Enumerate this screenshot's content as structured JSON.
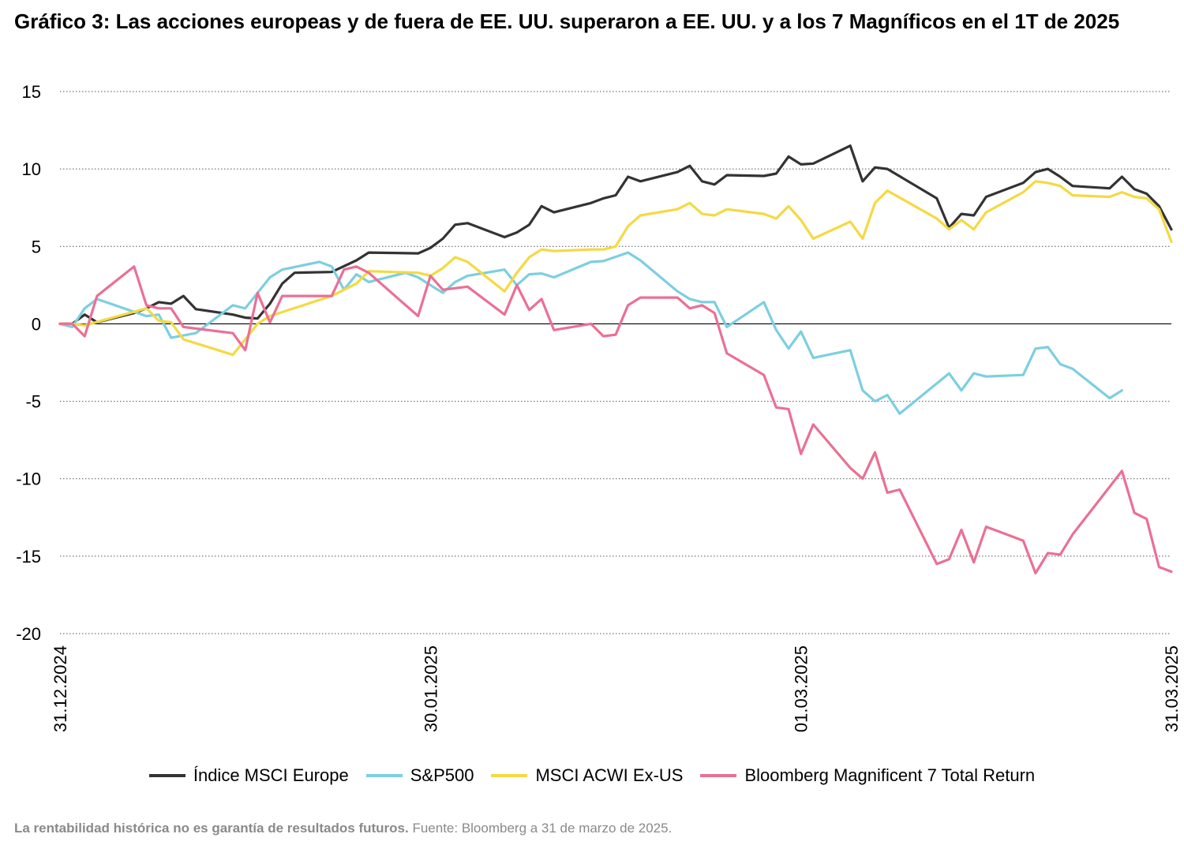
{
  "title": "Gráfico 3: Las acciones europeas y de fuera de EE. UU. superaron a EE. UU. y a los 7 Magníficos en el 1T de 2025",
  "footnote": {
    "bold": "La rentabilidad histórica no es garantía de resultados futuros.",
    "normal": " Fuente: Bloomberg a 31 de marzo de 2025."
  },
  "chart_data": {
    "type": "line",
    "xlabel": "",
    "ylabel": "",
    "ylim": [
      -20,
      15
    ],
    "yticks": [
      15,
      10,
      5,
      0,
      -5,
      -10,
      -15,
      -20
    ],
    "xlim": [
      "2024-12-31",
      "2025-03-31"
    ],
    "xticks": [
      "31.12.2024",
      "30.01.2025",
      "01.03.2025",
      "31.03.2025"
    ],
    "grid": "horizontal dotted",
    "legend_position": "bottom",
    "series": [
      {
        "name": "Índice MSCI Europe",
        "color": "#333333",
        "points": [
          [
            "2024-12-31",
            0
          ],
          [
            "2025-01-01",
            0
          ],
          [
            "2025-01-02",
            0.6
          ],
          [
            "2025-01-03",
            0.1
          ],
          [
            "2025-01-06",
            0.7
          ],
          [
            "2025-01-07",
            1.0
          ],
          [
            "2025-01-08",
            1.4
          ],
          [
            "2025-01-09",
            1.3
          ],
          [
            "2025-01-10",
            1.8
          ],
          [
            "2025-01-11",
            0.95
          ],
          [
            "2025-01-14",
            0.6
          ],
          [
            "2025-01-15",
            0.4
          ],
          [
            "2025-01-16",
            0.35
          ],
          [
            "2025-01-17",
            1.3
          ],
          [
            "2025-01-18",
            2.6
          ],
          [
            "2025-01-19",
            3.3
          ],
          [
            "2025-01-22",
            3.35
          ],
          [
            "2025-01-24",
            4.1
          ],
          [
            "2025-01-25",
            4.6
          ],
          [
            "2025-01-29",
            4.55
          ],
          [
            "2025-01-30",
            4.9
          ],
          [
            "2025-01-31",
            5.5
          ],
          [
            "2025-02-01",
            6.4
          ],
          [
            "2025-02-02",
            6.5
          ],
          [
            "2025-02-05",
            5.6
          ],
          [
            "2025-02-06",
            5.9
          ],
          [
            "2025-02-07",
            6.4
          ],
          [
            "2025-02-08",
            7.6
          ],
          [
            "2025-02-09",
            7.2
          ],
          [
            "2025-02-12",
            7.8
          ],
          [
            "2025-02-13",
            8.1
          ],
          [
            "2025-02-14",
            8.3
          ],
          [
            "2025-02-15",
            9.5
          ],
          [
            "2025-02-16",
            9.2
          ],
          [
            "2025-02-19",
            9.8
          ],
          [
            "2025-02-20",
            10.2
          ],
          [
            "2025-02-21",
            9.2
          ],
          [
            "2025-02-22",
            9.0
          ],
          [
            "2025-02-23",
            9.6
          ],
          [
            "2025-02-26",
            9.55
          ],
          [
            "2025-02-27",
            9.7
          ],
          [
            "2025-02-28",
            10.8
          ],
          [
            "2025-03-01",
            10.3
          ],
          [
            "2025-03-02",
            10.35
          ],
          [
            "2025-03-05",
            11.5
          ],
          [
            "2025-03-06",
            9.2
          ],
          [
            "2025-03-07",
            10.1
          ],
          [
            "2025-03-08",
            10.0
          ],
          [
            "2025-03-12",
            8.1
          ],
          [
            "2025-03-13",
            6.2
          ],
          [
            "2025-03-14",
            7.1
          ],
          [
            "2025-03-15",
            7.0
          ],
          [
            "2025-03-16",
            8.2
          ],
          [
            "2025-03-19",
            9.1
          ],
          [
            "2025-03-20",
            9.8
          ],
          [
            "2025-03-21",
            10.0
          ],
          [
            "2025-03-22",
            9.5
          ],
          [
            "2025-03-23",
            8.9
          ],
          [
            "2025-03-26",
            8.75
          ],
          [
            "2025-03-27",
            9.5
          ],
          [
            "2025-03-28",
            8.7
          ],
          [
            "2025-03-29",
            8.4
          ],
          [
            "2025-03-30",
            7.6
          ],
          [
            "2025-03-31",
            6.1
          ]
        ]
      },
      {
        "name": "S&P500",
        "color": "#7ccfe0",
        "points": [
          [
            "2024-12-31",
            0
          ],
          [
            "2025-01-01",
            -0.2
          ],
          [
            "2025-01-02",
            1.0
          ],
          [
            "2025-01-03",
            1.6
          ],
          [
            "2025-01-07",
            0.5
          ],
          [
            "2025-01-08",
            0.6
          ],
          [
            "2025-01-09",
            -0.9
          ],
          [
            "2025-01-11",
            -0.6
          ],
          [
            "2025-01-14",
            1.2
          ],
          [
            "2025-01-15",
            1.0
          ],
          [
            "2025-01-16",
            2.0
          ],
          [
            "2025-01-17",
            3.0
          ],
          [
            "2025-01-18",
            3.5
          ],
          [
            "2025-01-21",
            4.0
          ],
          [
            "2025-01-22",
            3.7
          ],
          [
            "2025-01-23",
            2.2
          ],
          [
            "2025-01-24",
            3.2
          ],
          [
            "2025-01-25",
            2.7
          ],
          [
            "2025-01-28",
            3.3
          ],
          [
            "2025-01-29",
            3.0
          ],
          [
            "2025-01-31",
            2.0
          ],
          [
            "2025-02-01",
            2.7
          ],
          [
            "2025-02-02",
            3.1
          ],
          [
            "2025-02-05",
            3.5
          ],
          [
            "2025-02-06",
            2.5
          ],
          [
            "2025-02-07",
            3.2
          ],
          [
            "2025-02-08",
            3.25
          ],
          [
            "2025-02-09",
            3.0
          ],
          [
            "2025-02-12",
            4.0
          ],
          [
            "2025-02-13",
            4.05
          ],
          [
            "2025-02-15",
            4.6
          ],
          [
            "2025-02-16",
            4.1
          ],
          [
            "2025-02-19",
            2.1
          ],
          [
            "2025-02-20",
            1.6
          ],
          [
            "2025-02-21",
            1.4
          ],
          [
            "2025-02-22",
            1.4
          ],
          [
            "2025-02-23",
            -0.2
          ],
          [
            "2025-02-26",
            1.4
          ],
          [
            "2025-02-27",
            -0.4
          ],
          [
            "2025-02-28",
            -1.6
          ],
          [
            "2025-03-01",
            -0.5
          ],
          [
            "2025-03-02",
            -2.2
          ],
          [
            "2025-03-05",
            -1.7
          ],
          [
            "2025-03-06",
            -4.3
          ],
          [
            "2025-03-07",
            -5.0
          ],
          [
            "2025-03-08",
            -4.6
          ],
          [
            "2025-03-09",
            -5.8
          ],
          [
            "2025-03-13",
            -3.2
          ],
          [
            "2025-03-14",
            -4.3
          ],
          [
            "2025-03-15",
            -3.2
          ],
          [
            "2025-03-16",
            -3.4
          ],
          [
            "2025-03-19",
            -3.3
          ],
          [
            "2025-03-20",
            -1.6
          ],
          [
            "2025-03-21",
            -1.5
          ],
          [
            "2025-03-22",
            -2.6
          ],
          [
            "2025-03-23",
            -2.9
          ],
          [
            "2025-03-26",
            -4.8
          ],
          [
            "2025-03-27",
            -4.3
          ]
        ]
      },
      {
        "name": "MSCI ACWI Ex-US",
        "color": "#f5d942",
        "points": [
          [
            "2024-12-31",
            0
          ],
          [
            "2025-01-01",
            0
          ],
          [
            "2025-01-02",
            -0.1
          ],
          [
            "2025-01-07",
            1.0
          ],
          [
            "2025-01-08",
            0.2
          ],
          [
            "2025-01-09",
            0.1
          ],
          [
            "2025-01-10",
            -1.0
          ],
          [
            "2025-01-14",
            -2.0
          ],
          [
            "2025-01-15",
            -1.0
          ],
          [
            "2025-01-16",
            0.0
          ],
          [
            "2025-01-17",
            0.5
          ],
          [
            "2025-01-22",
            1.8
          ],
          [
            "2025-01-24",
            2.6
          ],
          [
            "2025-01-25",
            3.4
          ],
          [
            "2025-01-29",
            3.3
          ],
          [
            "2025-01-30",
            3.1
          ],
          [
            "2025-01-31",
            3.6
          ],
          [
            "2025-02-01",
            4.3
          ],
          [
            "2025-02-02",
            4.0
          ],
          [
            "2025-02-05",
            2.1
          ],
          [
            "2025-02-06",
            3.3
          ],
          [
            "2025-02-07",
            4.3
          ],
          [
            "2025-02-08",
            4.8
          ],
          [
            "2025-02-09",
            4.7
          ],
          [
            "2025-02-12",
            4.8
          ],
          [
            "2025-02-13",
            4.8
          ],
          [
            "2025-02-14",
            5.0
          ],
          [
            "2025-02-15",
            6.3
          ],
          [
            "2025-02-16",
            7.0
          ],
          [
            "2025-02-19",
            7.4
          ],
          [
            "2025-02-20",
            7.8
          ],
          [
            "2025-02-21",
            7.1
          ],
          [
            "2025-02-22",
            7.0
          ],
          [
            "2025-02-23",
            7.4
          ],
          [
            "2025-02-26",
            7.1
          ],
          [
            "2025-02-27",
            6.8
          ],
          [
            "2025-02-28",
            7.6
          ],
          [
            "2025-03-01",
            6.7
          ],
          [
            "2025-03-02",
            5.5
          ],
          [
            "2025-03-05",
            6.6
          ],
          [
            "2025-03-06",
            5.5
          ],
          [
            "2025-03-07",
            7.8
          ],
          [
            "2025-03-08",
            8.6
          ],
          [
            "2025-03-12",
            6.8
          ],
          [
            "2025-03-13",
            6.1
          ],
          [
            "2025-03-14",
            6.7
          ],
          [
            "2025-03-15",
            6.1
          ],
          [
            "2025-03-16",
            7.2
          ],
          [
            "2025-03-19",
            8.5
          ],
          [
            "2025-03-20",
            9.2
          ],
          [
            "2025-03-21",
            9.1
          ],
          [
            "2025-03-22",
            8.9
          ],
          [
            "2025-03-23",
            8.3
          ],
          [
            "2025-03-26",
            8.2
          ],
          [
            "2025-03-27",
            8.5
          ],
          [
            "2025-03-28",
            8.2
          ],
          [
            "2025-03-29",
            8.1
          ],
          [
            "2025-03-30",
            7.4
          ],
          [
            "2025-03-31",
            5.3
          ]
        ]
      },
      {
        "name": "Bloomberg Magnificent 7 Total Return",
        "color": "#ea7095",
        "points": [
          [
            "2024-12-31",
            0
          ],
          [
            "2025-01-01",
            0
          ],
          [
            "2025-01-02",
            -0.8
          ],
          [
            "2025-01-03",
            1.8
          ],
          [
            "2025-01-06",
            3.7
          ],
          [
            "2025-01-07",
            1.2
          ],
          [
            "2025-01-08",
            1.0
          ],
          [
            "2025-01-09",
            1.0
          ],
          [
            "2025-01-10",
            -0.2
          ],
          [
            "2025-01-14",
            -0.6
          ],
          [
            "2025-01-15",
            -1.7
          ],
          [
            "2025-01-16",
            2.0
          ],
          [
            "2025-01-17",
            0.1
          ],
          [
            "2025-01-18",
            1.8
          ],
          [
            "2025-01-22",
            1.8
          ],
          [
            "2025-01-23",
            3.5
          ],
          [
            "2025-01-24",
            3.7
          ],
          [
            "2025-01-25",
            3.3
          ],
          [
            "2025-01-29",
            0.5
          ],
          [
            "2025-01-30",
            3.1
          ],
          [
            "2025-01-31",
            2.2
          ],
          [
            "2025-02-01",
            2.3
          ],
          [
            "2025-02-02",
            2.4
          ],
          [
            "2025-02-05",
            0.6
          ],
          [
            "2025-02-06",
            2.5
          ],
          [
            "2025-02-07",
            0.9
          ],
          [
            "2025-02-08",
            1.6
          ],
          [
            "2025-02-09",
            -0.4
          ],
          [
            "2025-02-12",
            0.0
          ],
          [
            "2025-02-13",
            -0.8
          ],
          [
            "2025-02-14",
            -0.7
          ],
          [
            "2025-02-15",
            1.2
          ],
          [
            "2025-02-16",
            1.7
          ],
          [
            "2025-02-19",
            1.7
          ],
          [
            "2025-02-20",
            1.0
          ],
          [
            "2025-02-21",
            1.2
          ],
          [
            "2025-02-22",
            0.7
          ],
          [
            "2025-02-23",
            -1.9
          ],
          [
            "2025-02-26",
            -3.3
          ],
          [
            "2025-02-27",
            -5.4
          ],
          [
            "2025-02-28",
            -5.5
          ],
          [
            "2025-03-01",
            -8.4
          ],
          [
            "2025-03-02",
            -6.5
          ],
          [
            "2025-03-05",
            -9.3
          ],
          [
            "2025-03-06",
            -10.0
          ],
          [
            "2025-03-07",
            -8.3
          ],
          [
            "2025-03-08",
            -10.9
          ],
          [
            "2025-03-09",
            -10.7
          ],
          [
            "2025-03-12",
            -15.5
          ],
          [
            "2025-03-13",
            -15.2
          ],
          [
            "2025-03-14",
            -13.3
          ],
          [
            "2025-03-15",
            -15.4
          ],
          [
            "2025-03-16",
            -13.1
          ],
          [
            "2025-03-19",
            -14.0
          ],
          [
            "2025-03-20",
            -16.1
          ],
          [
            "2025-03-21",
            -14.8
          ],
          [
            "2025-03-22",
            -14.9
          ],
          [
            "2025-03-23",
            -13.6
          ],
          [
            "2025-03-27",
            -9.5
          ],
          [
            "2025-03-28",
            -12.2
          ],
          [
            "2025-03-29",
            -12.6
          ],
          [
            "2025-03-30",
            -15.7
          ],
          [
            "2025-03-31",
            -16.0
          ]
        ]
      }
    ]
  }
}
